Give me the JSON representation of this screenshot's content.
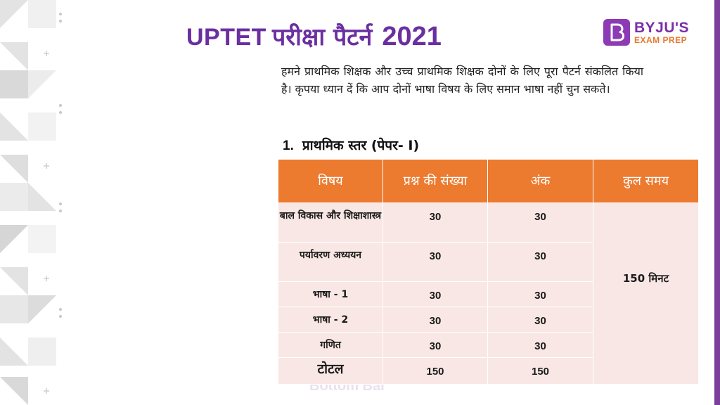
{
  "title": {
    "latin": "UPTET",
    "hindi": "परीक्षा पैटर्न",
    "year": "2021"
  },
  "logo": {
    "line1": "BYJU'S",
    "line2": "EXAM PREP"
  },
  "intro": "हमने प्राथमिक शिक्षक और उच्च प्राथमिक शिक्षक दोनों के लिए पूरा पैटर्न संकलित किया है। कृपया ध्यान दें कि आप दोनों भाषा विषय के लिए समान भाषा नहीं चुन सकते।",
  "section": {
    "number": "1.",
    "heading": "प्राथमिक स्तर (पेपर- I)"
  },
  "table": {
    "headers": [
      "विषय",
      "प्रश्न की संख्या",
      "अंक",
      "कुल समय"
    ],
    "rows": [
      {
        "subject": "बाल विकास और शिक्षाशास्त्र",
        "questions": "30",
        "marks": "30"
      },
      {
        "subject": "पर्यावरण अध्ययन",
        "questions": "30",
        "marks": "30"
      },
      {
        "subject": "भाषा - 1",
        "questions": "30",
        "marks": "30"
      },
      {
        "subject": "भाषा - 2",
        "questions": "30",
        "marks": "30"
      },
      {
        "subject": "गणित",
        "questions": "30",
        "marks": "30"
      },
      {
        "subject": "टोटल",
        "questions": "150",
        "marks": "150"
      }
    ],
    "total_time": "150 मिनट"
  },
  "watermark": "Bottom Bar",
  "colors": {
    "title": "#6b2fa0",
    "header_bg": "#ec7a2f",
    "cell_bg": "#f9e7e5",
    "logo_purple": "#8d3ab5",
    "logo_orange": "#e8772e"
  }
}
